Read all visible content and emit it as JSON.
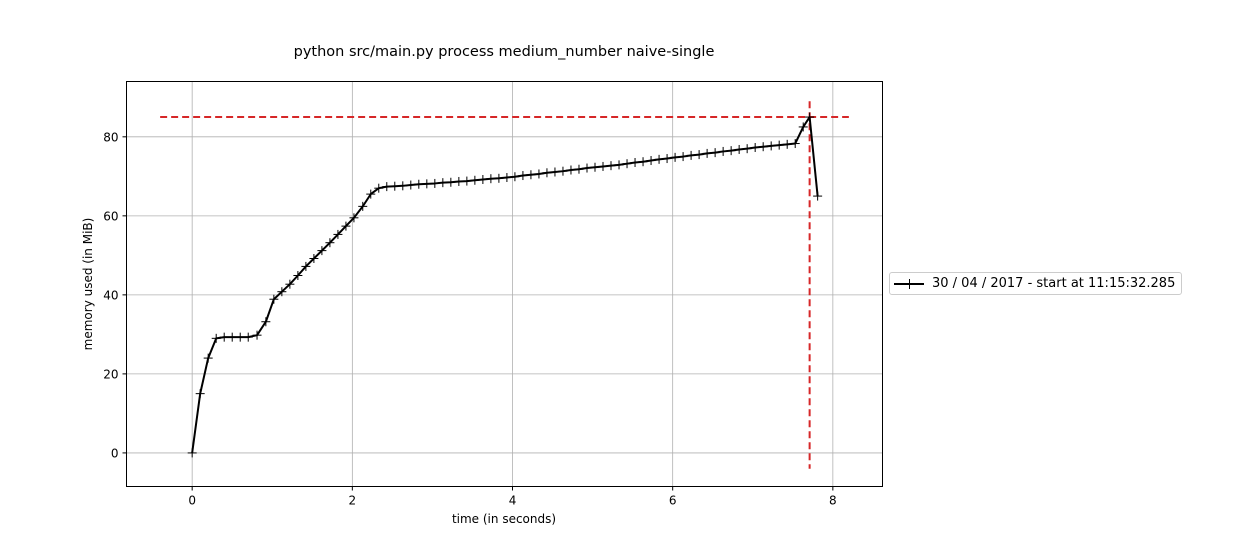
{
  "chart_data": {
    "type": "line",
    "title": "python src/main.py process medium_number naive-single",
    "xlabel": "time (in seconds)",
    "ylabel": "memory used (in MiB)",
    "xlim": [
      -0.82,
      8.62
    ],
    "ylim": [
      -8.5,
      94
    ],
    "xticks": [
      0,
      2,
      4,
      6,
      8
    ],
    "yticks": [
      0,
      20,
      40,
      60,
      80
    ],
    "grid": true,
    "legend_position": "right, outside plot area",
    "series": [
      {
        "name": "30 / 04 / 2017 - start at 11:15:32.285",
        "color": "#000000",
        "marker": "+",
        "x": [
          0.0,
          0.1,
          0.2,
          0.3,
          0.4,
          0.5,
          0.6,
          0.7,
          0.81,
          0.92,
          1.02,
          1.12,
          1.22,
          1.32,
          1.42,
          1.52,
          1.62,
          1.72,
          1.82,
          1.92,
          2.02,
          2.13,
          2.23,
          2.33,
          2.43,
          2.53,
          2.63,
          2.73,
          2.83,
          2.93,
          3.03,
          3.13,
          3.23,
          3.33,
          3.43,
          3.53,
          3.63,
          3.73,
          3.83,
          3.93,
          4.03,
          4.13,
          4.23,
          4.33,
          4.43,
          4.53,
          4.63,
          4.73,
          4.83,
          4.93,
          5.03,
          5.13,
          5.23,
          5.33,
          5.43,
          5.53,
          5.63,
          5.73,
          5.83,
          5.93,
          6.03,
          6.13,
          6.23,
          6.33,
          6.43,
          6.53,
          6.63,
          6.73,
          6.83,
          6.93,
          7.03,
          7.13,
          7.23,
          7.33,
          7.43,
          7.53,
          7.63,
          7.71,
          7.81
        ],
        "y": [
          0.0,
          15.0,
          24.0,
          29.0,
          29.3,
          29.3,
          29.3,
          29.3,
          29.8,
          33.2,
          38.9,
          40.8,
          42.7,
          44.9,
          47.2,
          49.2,
          51.2,
          53.2,
          55.3,
          57.4,
          59.5,
          62.4,
          65.5,
          67.0,
          67.4,
          67.5,
          67.6,
          67.8,
          68.0,
          68.1,
          68.2,
          68.4,
          68.5,
          68.7,
          68.8,
          69.0,
          69.2,
          69.4,
          69.5,
          69.7,
          69.9,
          70.2,
          70.4,
          70.6,
          70.9,
          71.1,
          71.3,
          71.6,
          71.8,
          72.1,
          72.3,
          72.5,
          72.7,
          72.9,
          73.2,
          73.5,
          73.7,
          74.0,
          74.3,
          74.5,
          74.8,
          75.0,
          75.3,
          75.5,
          75.8,
          76.0,
          76.3,
          76.5,
          76.8,
          77.0,
          77.3,
          77.5,
          77.7,
          77.9,
          78.1,
          78.3,
          82.5,
          85.0,
          65.0
        ]
      }
    ],
    "reference_lines": [
      {
        "orientation": "horizontal",
        "value": 85.0,
        "from": -0.4,
        "to": 8.2,
        "color": "#d62728",
        "style": "dashed"
      },
      {
        "orientation": "vertical",
        "value": 7.71,
        "from": -4,
        "to": 89,
        "color": "#d62728",
        "style": "dashed"
      }
    ]
  }
}
